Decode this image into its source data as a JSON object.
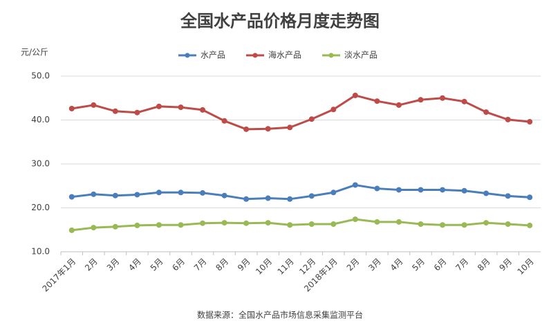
{
  "chart_data": {
    "type": "line",
    "title": "全国水产品价格月度走势图",
    "y_label": "元/公斤",
    "source": "数据来源：全国水产品市场信息采集监测平台",
    "categories": [
      "2017年1月",
      "2月",
      "3月",
      "4月",
      "5月",
      "6月",
      "7月",
      "8月",
      "9月",
      "10月",
      "11月",
      "12月",
      "2018年1月",
      "2月",
      "3月",
      "4月",
      "5月",
      "6月",
      "7月",
      "8月",
      "9月",
      "10月"
    ],
    "series": [
      {
        "name": "水产品",
        "color": "#4a7ebb",
        "values": [
          22.5,
          23.1,
          22.8,
          23.0,
          23.5,
          23.5,
          23.4,
          22.8,
          22.0,
          22.2,
          22.0,
          22.7,
          23.5,
          25.2,
          24.4,
          24.1,
          24.1,
          24.1,
          23.9,
          23.3,
          22.7,
          22.4
        ]
      },
      {
        "name": "海水产品",
        "color": "#be4b48",
        "values": [
          42.6,
          43.4,
          42.0,
          41.7,
          43.1,
          42.9,
          42.3,
          39.8,
          37.9,
          38.0,
          38.3,
          40.2,
          42.4,
          45.6,
          44.3,
          43.4,
          44.6,
          45.0,
          44.2,
          41.8,
          40.1,
          39.6
        ]
      },
      {
        "name": "淡水产品",
        "color": "#98b954",
        "values": [
          14.9,
          15.5,
          15.7,
          16.0,
          16.1,
          16.1,
          16.5,
          16.6,
          16.5,
          16.6,
          16.1,
          16.3,
          16.3,
          17.4,
          16.8,
          16.8,
          16.3,
          16.1,
          16.1,
          16.6,
          16.3,
          16.0
        ]
      }
    ],
    "ylim": [
      10,
      50
    ],
    "yticks": [
      {
        "value": 10,
        "label": "10.0"
      },
      {
        "value": 20,
        "label": "20.0"
      },
      {
        "value": 30,
        "label": "30.0"
      },
      {
        "value": 40,
        "label": "40.0"
      },
      {
        "value": 50,
        "label": "50.0"
      }
    ],
    "grid": true,
    "legend": "top"
  }
}
